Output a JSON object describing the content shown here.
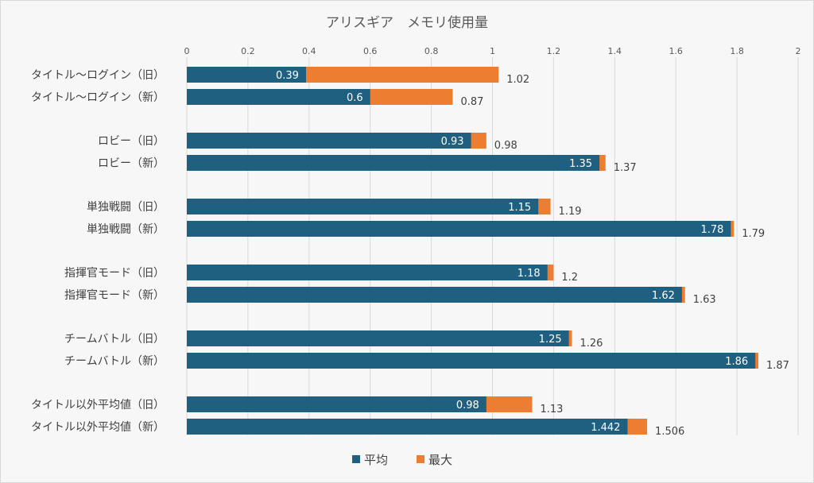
{
  "chart_data": {
    "type": "bar",
    "orientation": "horizontal",
    "title": "アリスギア　メモリ使用量",
    "xlim": [
      0,
      2
    ],
    "xticks": [
      "0",
      "0.2",
      "0.4",
      "0.6",
      "0.8",
      "1",
      "1.2",
      "1.4",
      "1.6",
      "1.8",
      "2"
    ],
    "grid": true,
    "legend_position": "bottom",
    "categories": [
      "タイトル～ログイン（旧）",
      "タイトル～ログイン（新）",
      "ロビー（旧）",
      "ロビー（新）",
      "単独戦闘（旧）",
      "単独戦闘（新）",
      "指揮官モード（旧）",
      "指揮官モード（新）",
      "チームバトル（旧）",
      "チームバトル（新）",
      "タイトル以外平均値（旧）",
      "タイトル以外平均値（新）"
    ],
    "series": [
      {
        "name": "平均",
        "color": "#1f5f80",
        "values": [
          0.39,
          0.6,
          0.93,
          1.35,
          1.15,
          1.78,
          1.18,
          1.62,
          1.25,
          1.86,
          0.98,
          1.442
        ],
        "labels": [
          "0.39",
          "0.6",
          "0.93",
          "1.35",
          "1.15",
          "1.78",
          "1.18",
          "1.62",
          "1.25",
          "1.86",
          "0.98",
          "1.442"
        ]
      },
      {
        "name": "最大",
        "color": "#ed7d31",
        "values": [
          1.02,
          0.87,
          0.98,
          1.37,
          1.19,
          1.79,
          1.2,
          1.63,
          1.26,
          1.87,
          1.13,
          1.506
        ],
        "labels": [
          "1.02",
          "0.87",
          "0.98",
          "1.37",
          "1.19",
          "1.79",
          "1.2",
          "1.63",
          "1.26",
          "1.87",
          "1.13",
          "1.506"
        ]
      }
    ]
  }
}
